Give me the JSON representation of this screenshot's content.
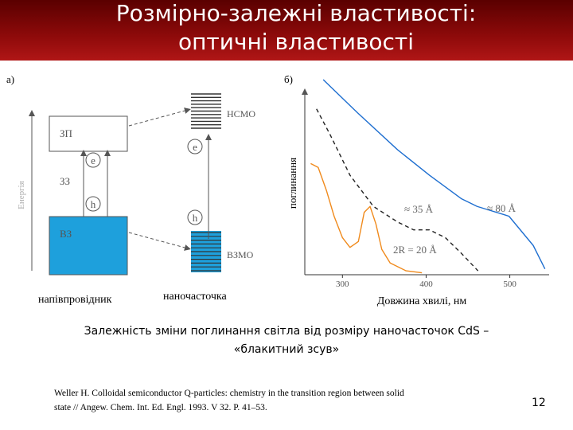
{
  "header": {
    "title_line1": "Розмірно-залежні властивості:",
    "title_line2": "оптичні властивості"
  },
  "diagram": {
    "panel_label": "а)",
    "energy_axis": "Енергія",
    "conduction_band": "ЗП",
    "band_gap": "ЗЗ",
    "valence_band": "ВЗ",
    "electron": "e",
    "hole": "h",
    "lumo": "НСМО",
    "homo": "ВЗМО",
    "semiconductor": "напівпровідник",
    "nanoparticle": "наночасточка"
  },
  "chart_data": {
    "type": "line",
    "panel_label": "б)",
    "y_label": "поглинання",
    "x_label": "Довжина хвилі, нм",
    "xlim": [
      255,
      547
    ],
    "ylim": [
      0,
      1
    ],
    "xticks": [
      300,
      400,
      500
    ],
    "series": [
      {
        "color": "#1f6fd0",
        "dash": false,
        "x": [
          277,
          318,
          366,
          404,
          442,
          461,
          499,
          528,
          542
        ],
        "values": [
          1.0,
          0.83,
          0.64,
          0.51,
          0.39,
          0.35,
          0.3,
          0.15,
          0.03
        ]
      },
      {
        "color": "#222222",
        "dash": true,
        "x": [
          269,
          285,
          309,
          337,
          366,
          385,
          404,
          423,
          442,
          462
        ],
        "values": [
          0.85,
          0.72,
          0.51,
          0.35,
          0.27,
          0.23,
          0.23,
          0.19,
          0.11,
          0.02
        ]
      },
      {
        "color": "#f08a1c",
        "dash": false,
        "x": [
          262,
          271,
          281,
          290,
          300,
          309,
          319,
          326,
          333,
          340,
          347,
          357,
          376,
          395
        ],
        "values": [
          0.57,
          0.55,
          0.43,
          0.3,
          0.19,
          0.14,
          0.17,
          0.32,
          0.35,
          0.26,
          0.13,
          0.06,
          0.02,
          0.01
        ]
      }
    ],
    "annotations": [
      "≈ 35 Å",
      "≈ 80 Å",
      "2R = 20 Å"
    ]
  },
  "caption": {
    "line1": "Залежність зміни поглинання світла від розміру наночасточок CdS –",
    "line2": "«блакитний зсув»"
  },
  "reference": {
    "line1": "Weller H. Colloidal semiconductor Q-particles: chemistry in the transition region between solid",
    "line2": "state // Angew. Chem. Int. Ed. Engl. 1993. V 32. P. 41–53."
  },
  "page_number": "12"
}
